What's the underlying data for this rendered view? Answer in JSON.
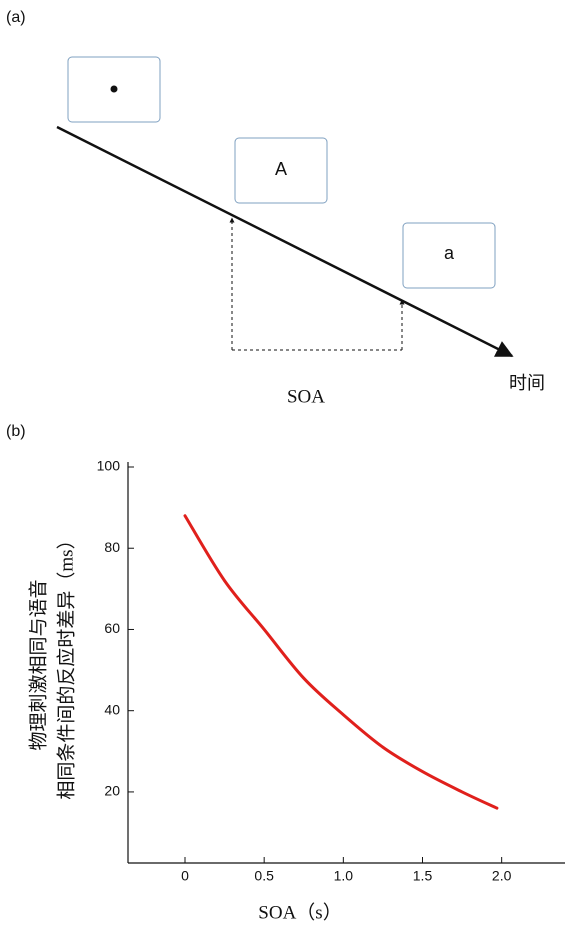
{
  "panel_a": {
    "label": "(a)",
    "box_2": "A",
    "box_3": "a",
    "interval_label": "SOA",
    "axis_label": "时间"
  },
  "panel_b_label": "(b)",
  "chart_data": {
    "type": "line",
    "xlabel": "SOA（s）",
    "ylabel": [
      "物理刺激相同与语音",
      "相同条件间的反应时差异（ms）"
    ],
    "x": [
      0,
      0.25,
      0.5,
      0.75,
      1.0,
      1.25,
      1.5,
      1.75,
      1.97
    ],
    "series": [
      {
        "color": "#e0201c",
        "values": [
          88,
          72,
          60,
          48,
          39,
          31,
          25,
          20,
          16
        ]
      }
    ],
    "xlim": [
      -0.36,
      2.4
    ],
    "xticks": [
      0,
      0.5,
      {
        "value": 1,
        "label": "1.0"
      },
      1.5,
      {
        "value": 2,
        "label": "2.0"
      }
    ],
    "ylim": [
      2.5,
      100
    ],
    "yticks": [
      20,
      40,
      60,
      80,
      100
    ]
  }
}
